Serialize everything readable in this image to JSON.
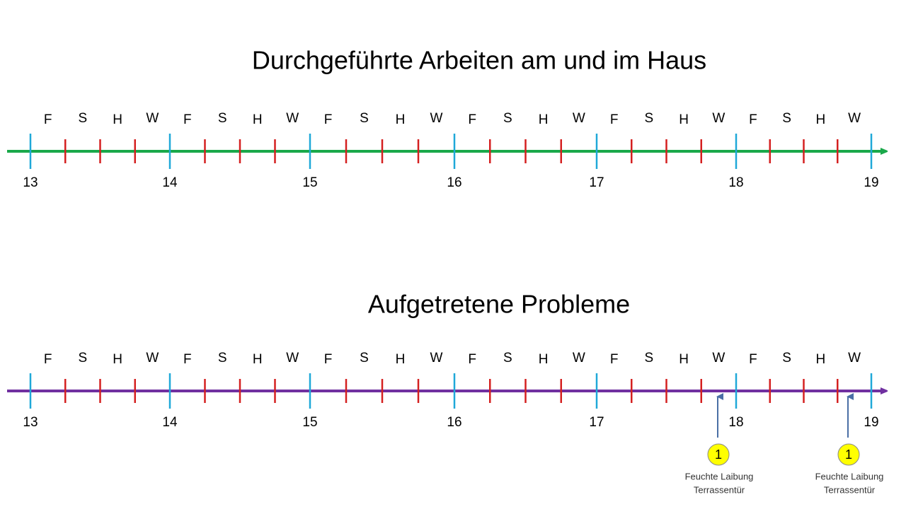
{
  "timelines": [
    {
      "title": "Durchgeführte Arbeiten am und im  Haus",
      "years": [
        "13",
        "14",
        "15",
        "16",
        "17",
        "18",
        "19"
      ],
      "seasons": [
        "F",
        "S",
        "H",
        "W",
        "F",
        "S",
        "H",
        "W",
        "F",
        "S",
        "H",
        "W",
        "F",
        "S",
        "H",
        "W",
        "F",
        "S",
        "H",
        "W",
        "F",
        "S",
        "H",
        "W"
      ]
    },
    {
      "title": "Aufgetretene Probleme",
      "years": [
        "13",
        "14",
        "15",
        "16",
        "17",
        "18",
        "19"
      ],
      "seasons": [
        "F",
        "S",
        "H",
        "W",
        "F",
        "S",
        "H",
        "W",
        "F",
        "S",
        "H",
        "W",
        "F",
        "S",
        "H",
        "W",
        "F",
        "S",
        "H",
        "W",
        "F",
        "S",
        "H",
        "W"
      ],
      "markers": [
        {
          "number": "1",
          "label": [
            "Feuchte Laibung",
            "Terrassentür"
          ]
        },
        {
          "number": "1",
          "label": [
            "Feuchte Laibung",
            "Terrassentür"
          ]
        }
      ]
    }
  ]
}
